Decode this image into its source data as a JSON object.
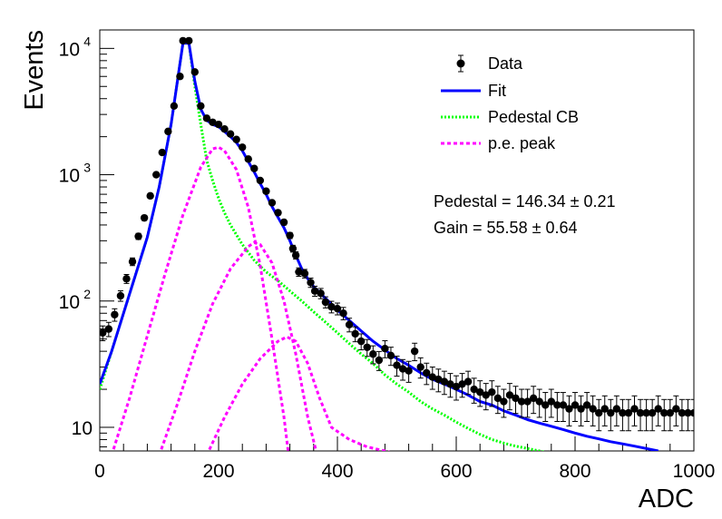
{
  "chart_data": {
    "type": "scatter",
    "xlabel": "ADC",
    "ylabel": "Events",
    "xlim": [
      0,
      1000
    ],
    "ylim": [
      6.5,
      14000
    ],
    "y_scale": "log",
    "grid": false,
    "legend_position": "top-right",
    "x_ticks": [
      0,
      200,
      400,
      600,
      800,
      1000
    ],
    "x_tick_labels": [
      "0",
      "200",
      "400",
      "600",
      "800",
      "1000"
    ],
    "y_ticks": [
      10,
      100,
      1000,
      10000
    ],
    "y_tick_labels": [
      "10",
      "10",
      "10",
      "10"
    ],
    "y_tick_exponents": [
      "",
      "2",
      "3",
      "4"
    ],
    "legend": [
      {
        "label": "Data",
        "style": "marker",
        "color": "#000000"
      },
      {
        "label": "Fit",
        "style": "solid",
        "color": "#0000ff"
      },
      {
        "label": "Pedestal CB",
        "style": "dotted",
        "color": "#00ff00"
      },
      {
        "label": "p.e. peak",
        "style": "dashed",
        "color": "#ff00ff"
      }
    ],
    "annotations": [
      "Pedestal = 146.34 ± 0.21",
      "Gain = 55.58 ± 0.64"
    ],
    "series": [
      {
        "name": "Data",
        "style": "points",
        "color": "#000000",
        "points": [
          [
            5,
            56
          ],
          [
            15,
            60
          ],
          [
            25,
            78
          ],
          [
            35,
            110
          ],
          [
            45,
            150
          ],
          [
            55,
            205
          ],
          [
            65,
            325
          ],
          [
            75,
            455
          ],
          [
            85,
            680
          ],
          [
            95,
            1000
          ],
          [
            105,
            1500
          ],
          [
            115,
            2200
          ],
          [
            125,
            3500
          ],
          [
            135,
            6000
          ],
          [
            140,
            11500
          ],
          [
            150,
            11500
          ],
          [
            160,
            6500
          ],
          [
            170,
            3500
          ],
          [
            180,
            2800
          ],
          [
            190,
            2600
          ],
          [
            200,
            2500
          ],
          [
            210,
            2300
          ],
          [
            220,
            2100
          ],
          [
            230,
            1900
          ],
          [
            240,
            1650
          ],
          [
            250,
            1330
          ],
          [
            260,
            1120
          ],
          [
            270,
            900
          ],
          [
            280,
            740
          ],
          [
            290,
            600
          ],
          [
            300,
            500
          ],
          [
            310,
            420
          ],
          [
            320,
            330
          ],
          [
            325,
            260
          ],
          [
            330,
            230
          ],
          [
            335,
            170
          ],
          [
            345,
            165
          ],
          [
            355,
            140
          ],
          [
            362,
            120
          ],
          [
            372,
            115
          ],
          [
            380,
            98
          ],
          [
            390,
            90
          ],
          [
            400,
            87
          ],
          [
            410,
            80
          ],
          [
            420,
            65
          ],
          [
            430,
            55
          ],
          [
            440,
            48
          ],
          [
            450,
            43
          ],
          [
            460,
            38
          ],
          [
            470,
            34
          ],
          [
            480,
            42
          ],
          [
            490,
            37
          ],
          [
            500,
            31
          ],
          [
            510,
            29
          ],
          [
            520,
            28
          ],
          [
            530,
            40
          ],
          [
            540,
            30
          ],
          [
            550,
            27
          ],
          [
            560,
            25
          ],
          [
            570,
            24
          ],
          [
            580,
            23
          ],
          [
            590,
            22
          ],
          [
            600,
            21
          ],
          [
            610,
            22
          ],
          [
            620,
            23
          ],
          [
            630,
            20
          ],
          [
            640,
            19
          ],
          [
            650,
            18
          ],
          [
            660,
            19
          ],
          [
            670,
            17
          ],
          [
            680,
            16
          ],
          [
            690,
            18
          ],
          [
            700,
            17
          ],
          [
            710,
            16
          ],
          [
            720,
            16
          ],
          [
            730,
            17
          ],
          [
            740,
            16
          ],
          [
            750,
            15
          ],
          [
            760,
            16
          ],
          [
            770,
            15
          ],
          [
            780,
            15
          ],
          [
            790,
            14
          ],
          [
            800,
            15
          ],
          [
            810,
            14
          ],
          [
            820,
            15
          ],
          [
            830,
            14
          ],
          [
            840,
            13
          ],
          [
            850,
            14
          ],
          [
            860,
            13
          ],
          [
            870,
            14
          ],
          [
            880,
            13
          ],
          [
            890,
            13
          ],
          [
            900,
            14
          ],
          [
            910,
            13
          ],
          [
            920,
            13
          ],
          [
            930,
            13
          ],
          [
            940,
            14
          ],
          [
            950,
            13
          ],
          [
            960,
            13
          ],
          [
            970,
            14
          ],
          [
            980,
            13
          ],
          [
            990,
            13
          ],
          [
            1000,
            13
          ]
        ]
      },
      {
        "name": "Fit",
        "style": "solid",
        "color": "#0000ff",
        "points": [
          [
            0,
            22
          ],
          [
            20,
            40
          ],
          [
            40,
            80
          ],
          [
            60,
            160
          ],
          [
            80,
            320
          ],
          [
            100,
            800
          ],
          [
            120,
            2500
          ],
          [
            140,
            11000
          ],
          [
            150,
            11000
          ],
          [
            160,
            5500
          ],
          [
            170,
            3300
          ],
          [
            180,
            2700
          ],
          [
            190,
            2500
          ],
          [
            200,
            2400
          ],
          [
            210,
            2200
          ],
          [
            220,
            2000
          ],
          [
            230,
            1800
          ],
          [
            240,
            1550
          ],
          [
            250,
            1270
          ],
          [
            260,
            1050
          ],
          [
            270,
            850
          ],
          [
            280,
            700
          ],
          [
            290,
            560
          ],
          [
            300,
            460
          ],
          [
            310,
            380
          ],
          [
            320,
            300
          ],
          [
            330,
            230
          ],
          [
            340,
            180
          ],
          [
            350,
            150
          ],
          [
            360,
            130
          ],
          [
            380,
            105
          ],
          [
            400,
            85
          ],
          [
            420,
            70
          ],
          [
            440,
            58
          ],
          [
            460,
            48
          ],
          [
            480,
            41
          ],
          [
            500,
            35
          ],
          [
            520,
            31
          ],
          [
            540,
            27
          ],
          [
            560,
            24
          ],
          [
            580,
            22
          ],
          [
            600,
            20
          ],
          [
            620,
            18
          ],
          [
            640,
            16
          ],
          [
            660,
            15
          ],
          [
            680,
            13.5
          ],
          [
            700,
            12.5
          ],
          [
            720,
            11.5
          ],
          [
            740,
            10.8
          ],
          [
            760,
            10.2
          ],
          [
            780,
            9.6
          ],
          [
            800,
            9
          ],
          [
            820,
            8.5
          ],
          [
            840,
            8.1
          ],
          [
            860,
            7.7
          ],
          [
            880,
            7.4
          ],
          [
            900,
            7.1
          ],
          [
            920,
            6.8
          ],
          [
            940,
            6.5
          ]
        ]
      },
      {
        "name": "Pedestal CB",
        "style": "dotted",
        "color": "#00ff00",
        "points": [
          [
            0,
            20
          ],
          [
            20,
            40
          ],
          [
            40,
            80
          ],
          [
            60,
            160
          ],
          [
            80,
            320
          ],
          [
            100,
            800
          ],
          [
            120,
            2500
          ],
          [
            140,
            11000
          ],
          [
            150,
            11000
          ],
          [
            160,
            5000
          ],
          [
            170,
            2500
          ],
          [
            180,
            1300
          ],
          [
            190,
            900
          ],
          [
            200,
            650
          ],
          [
            210,
            500
          ],
          [
            220,
            400
          ],
          [
            240,
            280
          ],
          [
            260,
            210
          ],
          [
            280,
            170
          ],
          [
            300,
            145
          ],
          [
            320,
            120
          ],
          [
            340,
            100
          ],
          [
            360,
            82
          ],
          [
            380,
            68
          ],
          [
            400,
            56
          ],
          [
            420,
            46
          ],
          [
            440,
            38
          ],
          [
            460,
            32
          ],
          [
            480,
            26
          ],
          [
            500,
            22
          ],
          [
            520,
            19
          ],
          [
            540,
            16
          ],
          [
            560,
            14
          ],
          [
            580,
            12.5
          ],
          [
            600,
            11
          ],
          [
            620,
            9.8
          ],
          [
            640,
            8.8
          ],
          [
            660,
            8
          ],
          [
            680,
            7.5
          ],
          [
            700,
            7.1
          ],
          [
            720,
            6.8
          ],
          [
            740,
            6.5
          ],
          [
            760,
            6.2
          ],
          [
            780,
            5.9
          ],
          [
            800,
            5.6
          ]
        ]
      },
      {
        "name": "p.e. peak",
        "style": "dashed",
        "color": "#ff00ff",
        "curves": [
          [
            [
              20,
              6
            ],
            [
              50,
              17
            ],
            [
              80,
              53
            ],
            [
              110,
              165
            ],
            [
              140,
              480
            ],
            [
              170,
              1150
            ],
            [
              190,
              1600
            ],
            [
              200,
              1650
            ],
            [
              210,
              1550
            ],
            [
              230,
              1100
            ],
            [
              250,
              550
            ],
            [
              270,
              190
            ],
            [
              290,
              50
            ],
            [
              310,
              12
            ],
            [
              320,
              5
            ]
          ],
          [
            [
              100,
              6
            ],
            [
              130,
              15
            ],
            [
              160,
              40
            ],
            [
              190,
              95
            ],
            [
              220,
              180
            ],
            [
              250,
              270
            ],
            [
              260,
              290
            ],
            [
              270,
              280
            ],
            [
              290,
              200
            ],
            [
              310,
              100
            ],
            [
              330,
              38
            ],
            [
              350,
              12
            ],
            [
              370,
              5
            ]
          ],
          [
            [
              180,
              6
            ],
            [
              210,
              12
            ],
            [
              240,
              22
            ],
            [
              270,
              35
            ],
            [
              300,
              48
            ],
            [
              315,
              52
            ],
            [
              330,
              48
            ],
            [
              350,
              32
            ],
            [
              370,
              17
            ],
            [
              390,
              10
            ],
            [
              420,
              8
            ],
            [
              450,
              7
            ],
            [
              480,
              6.5
            ],
            [
              520,
              5.8
            ]
          ]
        ]
      }
    ]
  }
}
